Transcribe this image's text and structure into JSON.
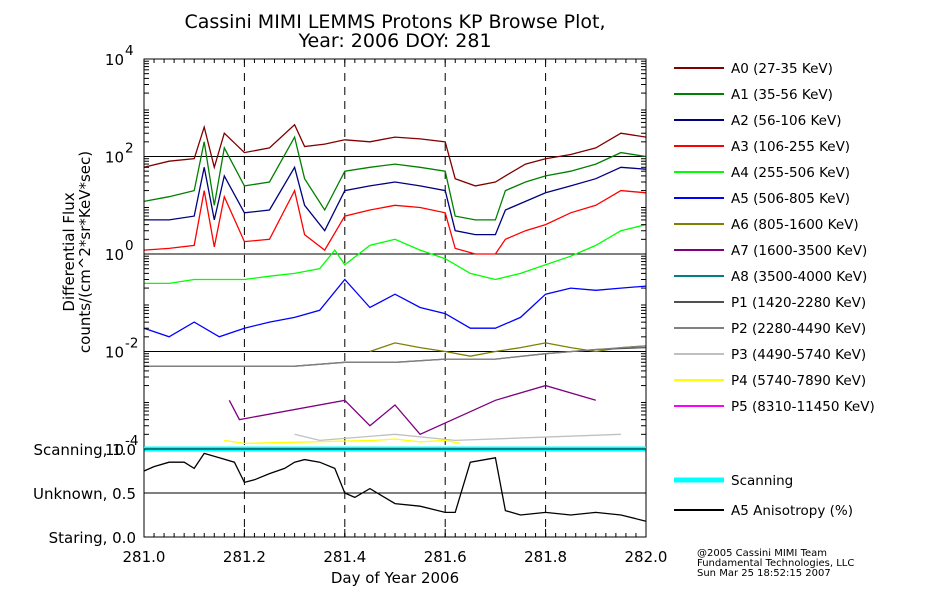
{
  "chart_data": [
    {
      "type": "line",
      "title": "Cassini MIMI LEMMS Protons KP Browse Plot,",
      "subtitle": "Year: 2006 DOY: 281",
      "ylabel_line1": "Differential Flux",
      "ylabel_line2": "counts/(cm^2*sr*KeV*sec)",
      "yscale": "log",
      "ylim": [
        0.0001,
        10000
      ],
      "y_ticks": [
        {
          "value": 0.0001,
          "base": "10",
          "exp": "-4"
        },
        {
          "value": 0.01,
          "base": "10",
          "exp": "-2"
        },
        {
          "value": 1,
          "base": "10",
          "exp": "0"
        },
        {
          "value": 100,
          "base": "10",
          "exp": "2"
        },
        {
          "value": 10000,
          "base": "10",
          "exp": "4"
        }
      ],
      "xlim": [
        281.0,
        282.0
      ],
      "dashed_x": [
        281.2,
        281.4,
        281.6,
        281.8
      ],
      "series": [
        {
          "name": "A0 (27-35 KeV)",
          "color": "#800000",
          "x": [
            281.0,
            281.05,
            281.1,
            281.12,
            281.14,
            281.16,
            281.2,
            281.25,
            281.3,
            281.32,
            281.36,
            281.4,
            281.45,
            281.5,
            281.55,
            281.6,
            281.62,
            281.66,
            281.7,
            281.72,
            281.76,
            281.8,
            281.85,
            281.9,
            281.95,
            282.0
          ],
          "y": [
            60,
            80,
            90,
            400,
            60,
            300,
            120,
            150,
            450,
            160,
            180,
            220,
            200,
            250,
            230,
            200,
            35,
            25,
            30,
            40,
            70,
            90,
            110,
            150,
            300,
            250
          ]
        },
        {
          "name": "A1 (35-56 KeV)",
          "color": "#008000",
          "x": [
            281.0,
            281.05,
            281.1,
            281.12,
            281.14,
            281.16,
            281.2,
            281.25,
            281.3,
            281.32,
            281.36,
            281.4,
            281.45,
            281.5,
            281.55,
            281.6,
            281.62,
            281.66,
            281.7,
            281.72,
            281.76,
            281.8,
            281.85,
            281.9,
            281.95,
            282.0
          ],
          "y": [
            12,
            15,
            20,
            200,
            10,
            150,
            25,
            30,
            250,
            35,
            8,
            50,
            60,
            70,
            60,
            50,
            6,
            5,
            5,
            20,
            30,
            40,
            50,
            70,
            120,
            100
          ]
        },
        {
          "name": "A2 (56-106 KeV)",
          "color": "#000080",
          "x": [
            281.0,
            281.05,
            281.1,
            281.12,
            281.14,
            281.16,
            281.2,
            281.25,
            281.3,
            281.32,
            281.36,
            281.4,
            281.45,
            281.5,
            281.55,
            281.6,
            281.62,
            281.66,
            281.7,
            281.72,
            281.76,
            281.8,
            281.85,
            281.9,
            281.95,
            282.0
          ],
          "y": [
            5,
            5,
            6,
            60,
            5,
            40,
            7,
            8,
            60,
            10,
            3,
            20,
            25,
            30,
            25,
            20,
            3,
            2.5,
            2.5,
            8,
            12,
            18,
            25,
            35,
            60,
            55
          ]
        },
        {
          "name": "A3 (106-255 KeV)",
          "color": "#ff0000",
          "x": [
            281.0,
            281.05,
            281.1,
            281.12,
            281.14,
            281.16,
            281.2,
            281.25,
            281.3,
            281.32,
            281.36,
            281.4,
            281.45,
            281.5,
            281.55,
            281.6,
            281.62,
            281.66,
            281.7,
            281.72,
            281.76,
            281.8,
            281.85,
            281.9,
            281.95,
            282.0
          ],
          "y": [
            1.2,
            1.3,
            1.5,
            20,
            1.4,
            15,
            1.8,
            2,
            20,
            2.5,
            1.2,
            6,
            8,
            10,
            9,
            7,
            1.3,
            1,
            1,
            2,
            3,
            4,
            7,
            10,
            20,
            18
          ]
        },
        {
          "name": "A4 (255-506 KeV)",
          "color": "#00ff00",
          "x": [
            281.0,
            281.05,
            281.1,
            281.15,
            281.2,
            281.25,
            281.3,
            281.35,
            281.38,
            281.4,
            281.45,
            281.5,
            281.55,
            281.6,
            281.65,
            281.7,
            281.75,
            281.8,
            281.85,
            281.9,
            281.95,
            282.0
          ],
          "y": [
            0.25,
            0.25,
            0.3,
            0.3,
            0.3,
            0.35,
            0.4,
            0.5,
            1.2,
            0.6,
            1.5,
            2,
            1.2,
            0.8,
            0.4,
            0.3,
            0.4,
            0.6,
            0.9,
            1.5,
            3,
            4
          ]
        },
        {
          "name": "A5 (506-805 KeV)",
          "color": "#0000ff",
          "x": [
            281.0,
            281.05,
            281.1,
            281.15,
            281.2,
            281.25,
            281.3,
            281.35,
            281.4,
            281.45,
            281.5,
            281.55,
            281.6,
            281.65,
            281.7,
            281.75,
            281.8,
            281.85,
            281.9,
            281.95,
            282.0
          ],
          "y": [
            0.03,
            0.02,
            0.04,
            0.02,
            0.03,
            0.04,
            0.05,
            0.07,
            0.3,
            0.08,
            0.15,
            0.08,
            0.06,
            0.03,
            0.03,
            0.05,
            0.15,
            0.2,
            0.18,
            0.2,
            0.22
          ]
        },
        {
          "name": "A6 (805-1600 KeV)",
          "color": "#808000",
          "x": [
            281.45,
            281.5,
            281.55,
            281.6,
            281.65,
            281.7,
            281.75,
            281.8,
            281.85,
            281.9,
            281.95,
            282.0
          ],
          "y": [
            0.01,
            0.015,
            0.012,
            0.01,
            0.008,
            0.01,
            0.012,
            0.015,
            0.012,
            0.01,
            0.012,
            0.013
          ]
        },
        {
          "name": "A7 (1600-3500 KeV)",
          "color": "#800080",
          "x": [
            281.17,
            281.19,
            281.4,
            281.45,
            281.5,
            281.55,
            281.7,
            281.8,
            281.9
          ],
          "y": [
            0.001,
            0.0004,
            0.001,
            0.0003,
            0.0008,
            0.0002,
            0.001,
            0.002,
            0.001
          ]
        },
        {
          "name": "A8 (3500-4000 KeV)",
          "color": "#008080",
          "x": [],
          "y": []
        },
        {
          "name": "P1 (1420-2280 KeV)",
          "color": "#505050",
          "x": [
            281.0,
            281.1,
            281.2,
            281.3,
            281.4,
            281.5,
            281.6,
            281.7,
            281.8,
            281.9,
            282.0
          ],
          "y": [
            0.005,
            0.005,
            0.005,
            0.005,
            0.006,
            0.006,
            0.007,
            0.007,
            0.009,
            0.011,
            0.012
          ]
        },
        {
          "name": "P2 (2280-4490 KeV)",
          "color": "#808080",
          "x": [
            281.0,
            281.1,
            281.2,
            281.3,
            281.4,
            281.5,
            281.6,
            281.7,
            281.8,
            281.9,
            282.0
          ],
          "y": [
            0.005,
            0.005,
            0.005,
            0.005,
            0.006,
            0.006,
            0.007,
            0.007,
            0.009,
            0.011,
            0.013
          ]
        },
        {
          "name": "P3 (4490-5740 KeV)",
          "color": "#c0c0c0",
          "x": [
            281.3,
            281.35,
            281.5,
            281.62,
            281.95
          ],
          "y": [
            0.0002,
            0.00015,
            0.0002,
            0.00015,
            0.0002
          ]
        },
        {
          "name": "P4 (5740-7890 KeV)",
          "color": "#ffff00",
          "x": [
            281.16,
            281.2,
            281.46,
            281.5,
            281.55,
            281.6,
            281.63
          ],
          "y": [
            0.00015,
            0.00013,
            0.00015,
            0.00016,
            0.00014,
            0.00015,
            0.00013
          ]
        },
        {
          "name": "P5 (8310-11450 KeV)",
          "color": "#ff00ff",
          "x": [],
          "y": []
        }
      ]
    },
    {
      "type": "line",
      "ylim": [
        0.0,
        1.0
      ],
      "y_ticks": [
        {
          "value": 1.0,
          "label": "Scanning, 1.0"
        },
        {
          "value": 0.5,
          "label": "Unknown, 0.5"
        },
        {
          "value": 0.0,
          "label": "Staring, 0.0"
        }
      ],
      "xlim": [
        281.0,
        282.0
      ],
      "x_ticks": [
        "281.0",
        "281.2",
        "281.4",
        "281.6",
        "281.8",
        "282.0"
      ],
      "x_tick_values": [
        281.0,
        281.2,
        281.4,
        281.6,
        281.8,
        282.0
      ],
      "xlabel": "Day of Year 2006",
      "series": [
        {
          "name": "Scanning",
          "color": "#00ffff",
          "x": [
            281.0,
            282.0
          ],
          "y": [
            1.0,
            1.0
          ]
        },
        {
          "name": "A5 Anisotropy (%)",
          "color": "#000000",
          "x": [
            281.0,
            281.02,
            281.05,
            281.08,
            281.1,
            281.12,
            281.15,
            281.18,
            281.2,
            281.22,
            281.25,
            281.28,
            281.3,
            281.32,
            281.35,
            281.38,
            281.4,
            281.42,
            281.45,
            281.5,
            281.55,
            281.6,
            281.62,
            281.65,
            281.7,
            281.72,
            281.75,
            281.8,
            281.85,
            281.9,
            281.95,
            282.0
          ],
          "y": [
            0.75,
            0.8,
            0.85,
            0.85,
            0.78,
            0.95,
            0.9,
            0.85,
            0.62,
            0.65,
            0.72,
            0.78,
            0.85,
            0.88,
            0.85,
            0.78,
            0.5,
            0.45,
            0.55,
            0.38,
            0.35,
            0.28,
            0.28,
            0.85,
            0.9,
            0.3,
            0.25,
            0.28,
            0.25,
            0.28,
            0.25,
            0.18
          ]
        }
      ]
    }
  ],
  "footer": {
    "line1": "@2005 Cassini MIMI Team",
    "line2": "Fundamental Technologies, LLC",
    "line3": "Sun Mar 25 18:52:15 2007"
  }
}
